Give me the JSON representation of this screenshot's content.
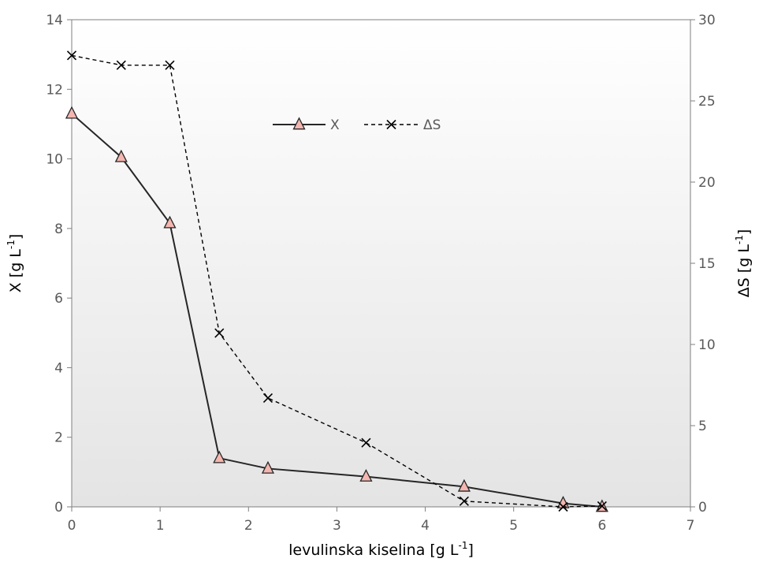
{
  "chart_data": {
    "type": "line",
    "xlabel": "levulinska kiselina [g L",
    "xlabel_sup": "-1",
    "xlabel_end": "]",
    "ylabel": "X [g L",
    "ylabel_sup": "-1",
    "ylabel_end": "]",
    "y2label": "ΔS [g L",
    "y2label_sup": "-1",
    "y2label_end": "]",
    "xlim": [
      0,
      7
    ],
    "ylim": [
      0,
      14
    ],
    "y2lim": [
      0,
      30
    ],
    "xticks": [
      "0",
      "1",
      "2",
      "3",
      "4",
      "5",
      "6",
      "7"
    ],
    "yticks": [
      "0",
      "2",
      "4",
      "6",
      "8",
      "10",
      "12",
      "14"
    ],
    "y2ticks": [
      "0",
      "5",
      "10",
      "15",
      "20",
      "25",
      "30"
    ],
    "grid": false,
    "legend_position": "top-center",
    "series": [
      {
        "name": "X",
        "axis": "left",
        "line_style": "solid",
        "marker": "triangle",
        "color": "#262626",
        "marker_fill": "#f4b6b0",
        "x": [
          0,
          0.56,
          1.11,
          1.67,
          2.22,
          3.33,
          4.44,
          5.56,
          6.0
        ],
        "y": [
          11.3,
          10.05,
          8.15,
          1.4,
          1.1,
          0.87,
          0.58,
          0.1,
          0.0
        ]
      },
      {
        "name": "ΔS",
        "axis": "right",
        "line_style": "dashed",
        "marker": "x",
        "color": "#000000",
        "x": [
          0,
          0.56,
          1.11,
          1.67,
          2.22,
          3.33,
          4.44,
          5.56,
          6.0
        ],
        "y": [
          27.8,
          27.2,
          27.2,
          10.7,
          6.7,
          3.95,
          0.35,
          0.0,
          0.05
        ]
      }
    ]
  }
}
